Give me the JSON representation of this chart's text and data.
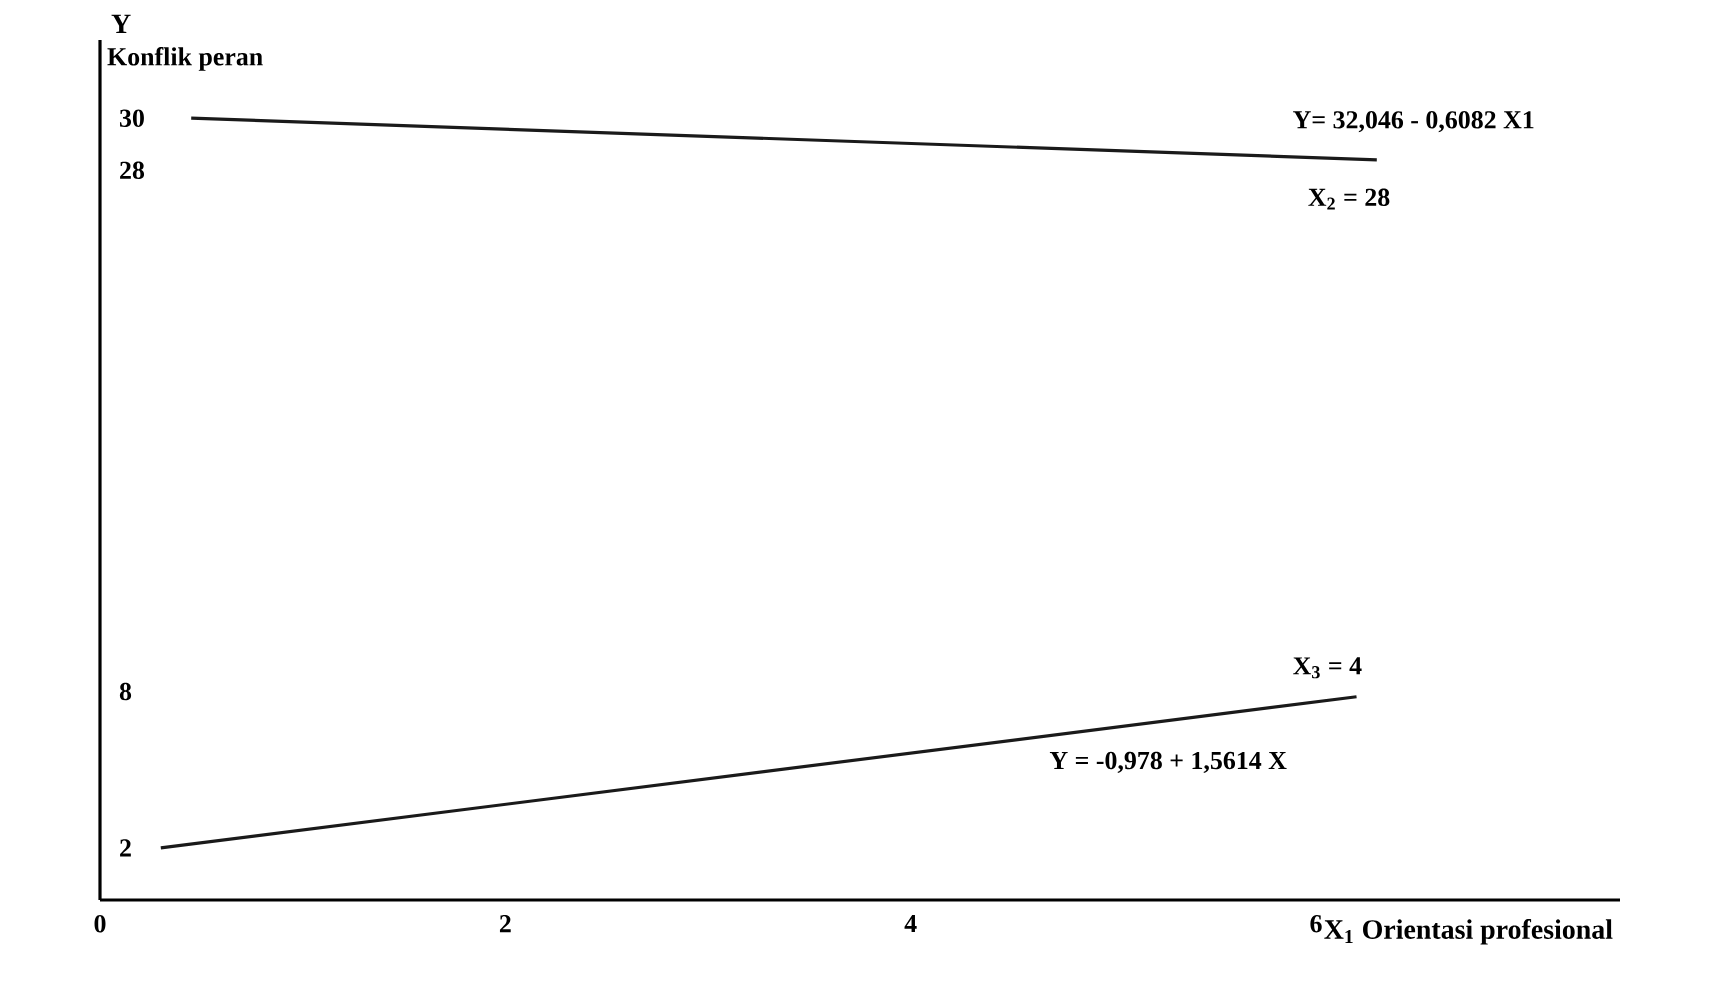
{
  "chart_data": {
    "type": "line",
    "ylabel": "Y",
    "xlabel": "X$_{1}$ Orientasi profesional",
    "xlim": [
      0,
      7.5
    ],
    "ylim": [
      0,
      33
    ],
    "xticks": [
      0,
      2,
      4,
      6
    ],
    "yticks": [
      2,
      8,
      28,
      30
    ],
    "series": [
      {
        "color": "#1a1a1a",
        "x": [
          0.45,
          6.3
        ],
        "values": [
          30,
          28.4
        ]
      },
      {
        "color": "#1a1a1a",
        "x": [
          0.3,
          6.2
        ],
        "values": [
          2,
          7.8
        ]
      }
    ],
    "annotations": [
      "Konflik peran",
      "Y= 32,046 - 0,6082 X1",
      "X$_{2}$ = 28",
      "X$_{3}$ = 4",
      "Y = -0,978 + 1,5614 X"
    ],
    "grid": false,
    "marker": "none",
    "line_style": "solid"
  }
}
